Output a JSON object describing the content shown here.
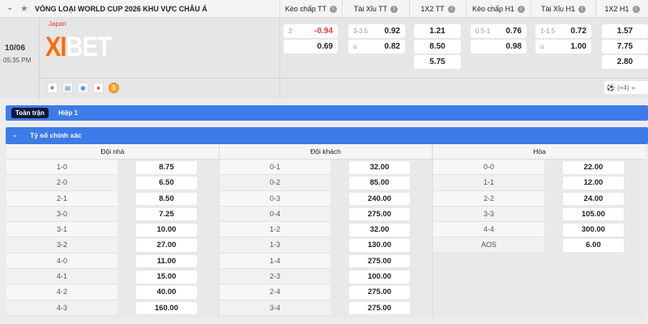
{
  "league": {
    "title": "VÒNG LOẠI WORLD CUP 2026 KHU VỰC CHÂU Á"
  },
  "columns": [
    "Kèo chấp TT",
    "Tài Xỉu TT",
    "1X2 TT",
    "Kèo chấp H1",
    "Tài Xỉu H1",
    "1X2 H1"
  ],
  "match": {
    "date": "10/06",
    "time": "05:35 PM",
    "home_team": "Japan",
    "watermark": "XIBET",
    "more_count": "(+4)",
    "handicap_ft": {
      "line": "2",
      "home": "-0.94",
      "away": "0.69"
    },
    "ou_ft": {
      "line": "3-3.5",
      "over": "0.92",
      "under_label": "u",
      "under": "0.82"
    },
    "x12_ft": [
      "1.21",
      "8.50",
      "5.75"
    ],
    "handicap_h1": {
      "line": "0.5-1",
      "home": "0.76",
      "away": "0.98"
    },
    "ou_h1": {
      "line": "1-1.5",
      "over": "0.72",
      "under_label": "u",
      "under": "1.00"
    },
    "x12_h1": [
      "1.57",
      "7.75",
      "2.80"
    ]
  },
  "tabs": {
    "full": "Toàn trận",
    "half": "Hiệp 1"
  },
  "section": {
    "title": "Tỷ số chính xác"
  },
  "correct_score": {
    "home": {
      "header": "Đội nhà",
      "rows": [
        [
          "1-0",
          "8.75"
        ],
        [
          "2-0",
          "6.50"
        ],
        [
          "2-1",
          "8.50"
        ],
        [
          "3-0",
          "7.25"
        ],
        [
          "3-1",
          "10.00"
        ],
        [
          "3-2",
          "27.00"
        ],
        [
          "4-0",
          "11.00"
        ],
        [
          "4-1",
          "15.00"
        ],
        [
          "4-2",
          "40.00"
        ],
        [
          "4-3",
          "160.00"
        ]
      ]
    },
    "away": {
      "header": "Đội khách",
      "rows": [
        [
          "0-1",
          "32.00"
        ],
        [
          "0-2",
          "85.00"
        ],
        [
          "0-3",
          "240.00"
        ],
        [
          "0-4",
          "275.00"
        ],
        [
          "1-2",
          "32.00"
        ],
        [
          "1-3",
          "130.00"
        ],
        [
          "1-4",
          "275.00"
        ],
        [
          "2-3",
          "100.00"
        ],
        [
          "2-4",
          "275.00"
        ],
        [
          "3-4",
          "275.00"
        ]
      ]
    },
    "draw": {
      "header": "Hòa",
      "rows": [
        [
          "0-0",
          "22.00"
        ],
        [
          "1-1",
          "12.00"
        ],
        [
          "2-2",
          "24.00"
        ],
        [
          "3-3",
          "105.00"
        ],
        [
          "4-4",
          "300.00"
        ],
        [
          "AOS",
          "6.00"
        ]
      ]
    }
  },
  "colors": {
    "accent": "#3d7be8",
    "negative": "#e53935",
    "logo_orange": "#ff6a00"
  }
}
